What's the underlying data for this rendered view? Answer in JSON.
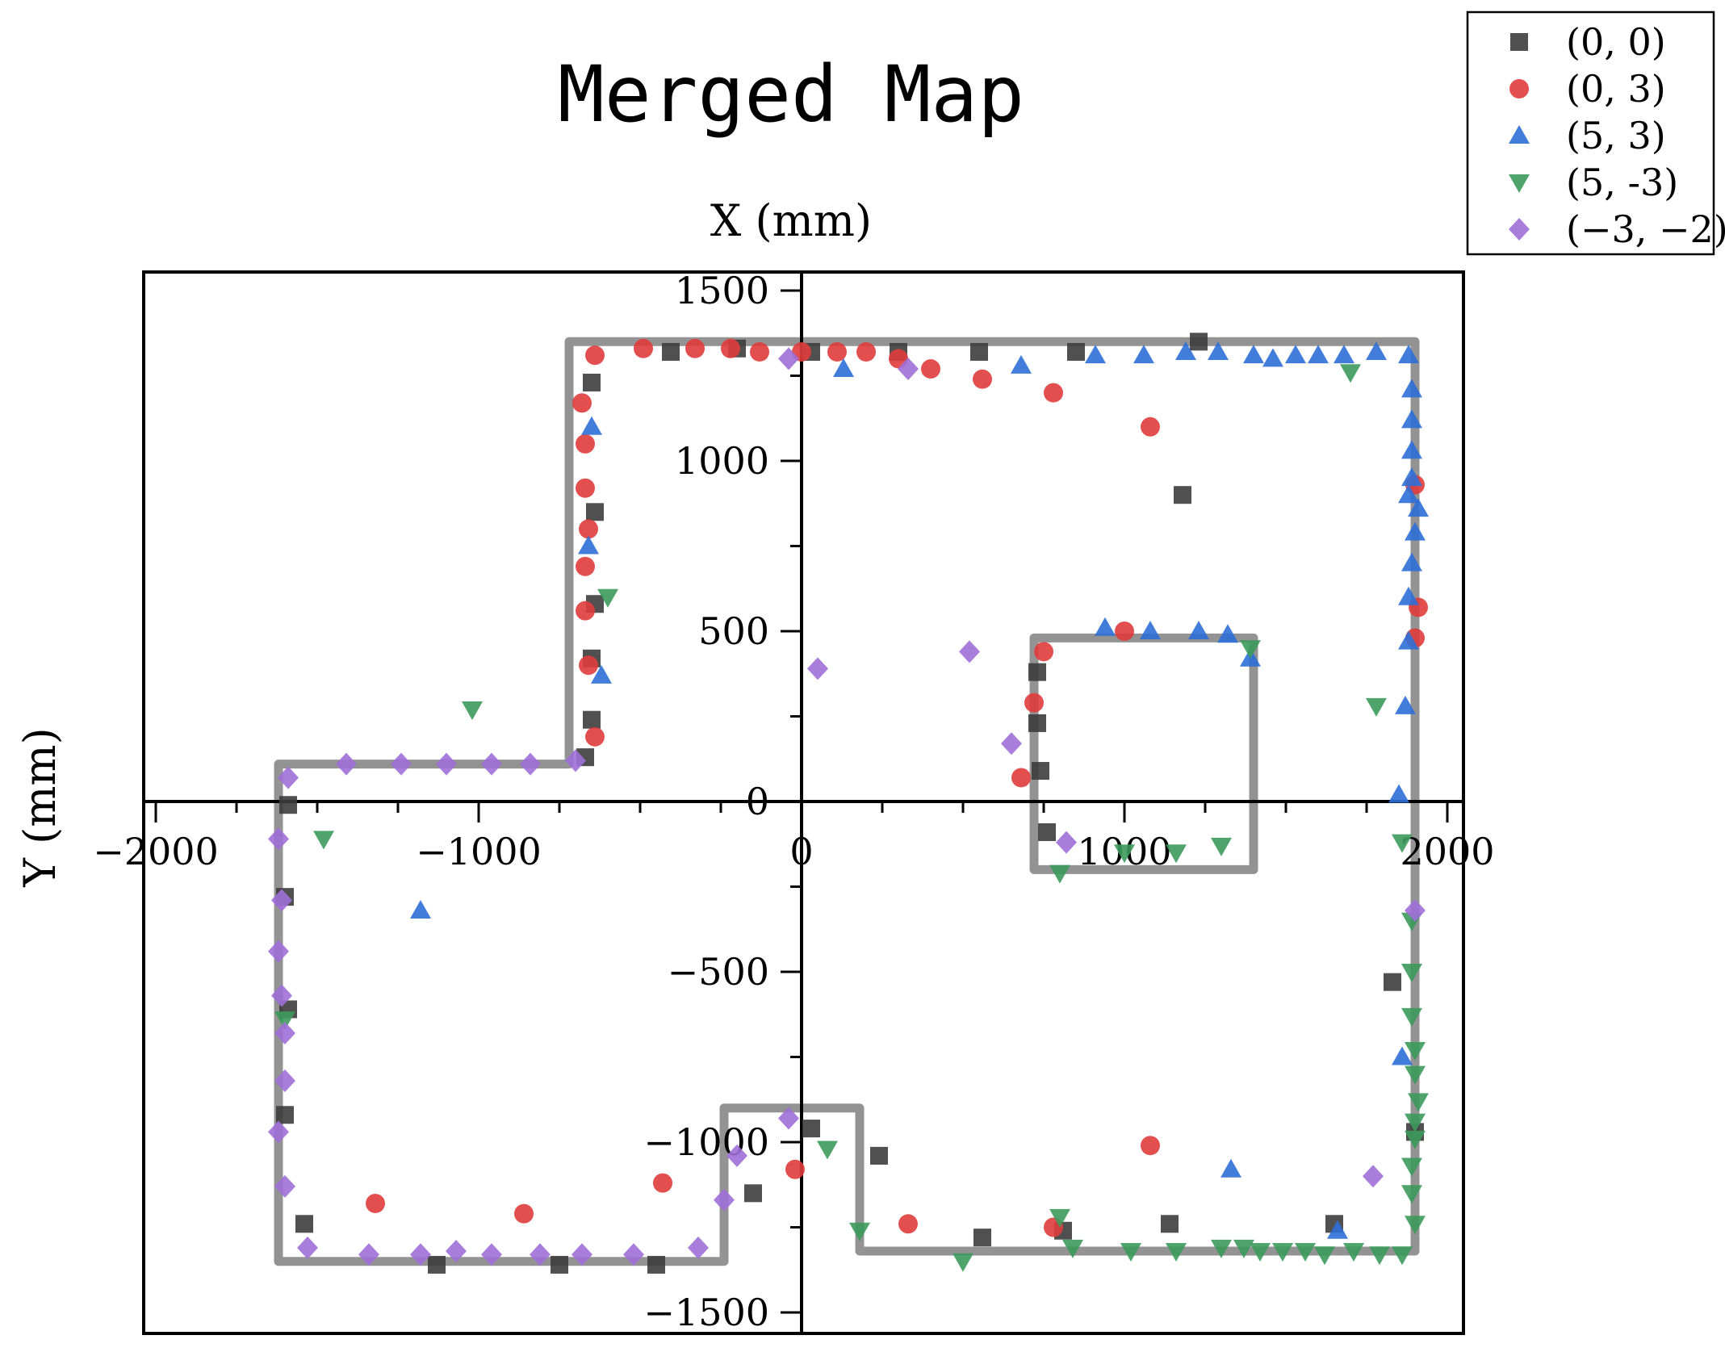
{
  "chart_data": {
    "type": "scatter",
    "title": "Merged Map",
    "xlabel": "X (mm)",
    "ylabel": "Y (mm)",
    "xlim": [
      -2000,
      2000
    ],
    "ylim": [
      -1500,
      1500
    ],
    "x_ticks": [
      -2000,
      -1000,
      0,
      1000,
      2000
    ],
    "y_ticks": [
      -1500,
      -1000,
      -500,
      0,
      500,
      1000,
      1500
    ],
    "x_tick_labels": [
      "−2000",
      "−1000",
      "0",
      "1000",
      "2000"
    ],
    "y_tick_labels": [
      "−1500",
      "−1000",
      "−500",
      "0",
      "500",
      "1000",
      "1500"
    ],
    "legend_position": "top-right-outside",
    "map_outline": {
      "color": "#808080",
      "paths": [
        [
          [
            -1620,
            110
          ],
          [
            -720,
            110
          ],
          [
            -720,
            1350
          ],
          [
            1900,
            1350
          ],
          [
            1900,
            -1320
          ],
          [
            180,
            -1320
          ],
          [
            180,
            -900
          ],
          [
            -240,
            -900
          ],
          [
            -240,
            -1350
          ],
          [
            -1620,
            -1350
          ],
          [
            -1620,
            110
          ]
        ],
        [
          [
            720,
            480
          ],
          [
            1400,
            480
          ],
          [
            1400,
            -200
          ],
          [
            720,
            -200
          ],
          [
            720,
            480
          ]
        ]
      ]
    },
    "series": [
      {
        "name": "(0, 0)",
        "marker": "square",
        "color": "#3d3d3d",
        "points": [
          [
            -1590,
            -10
          ],
          [
            -1600,
            -280
          ],
          [
            -1590,
            -610
          ],
          [
            -1600,
            -920
          ],
          [
            -1540,
            -1240
          ],
          [
            -1130,
            -1360
          ],
          [
            -750,
            -1360
          ],
          [
            -450,
            -1360
          ],
          [
            -150,
            -1150
          ],
          [
            -670,
            130
          ],
          [
            -650,
            240
          ],
          [
            -650,
            420
          ],
          [
            -640,
            580
          ],
          [
            -640,
            850
          ],
          [
            -650,
            1230
          ],
          [
            -405,
            1320
          ],
          [
            -200,
            1330
          ],
          [
            30,
            1320
          ],
          [
            300,
            1320
          ],
          [
            550,
            1320
          ],
          [
            850,
            1320
          ],
          [
            1230,
            1350
          ],
          [
            1180,
            900
          ],
          [
            730,
            380
          ],
          [
            730,
            230
          ],
          [
            740,
            90
          ],
          [
            760,
            -90
          ],
          [
            810,
            -1260
          ],
          [
            1140,
            -1240
          ],
          [
            560,
            -1280
          ],
          [
            240,
            -1040
          ],
          [
            30,
            -960
          ],
          [
            1830,
            -530
          ],
          [
            1900,
            -970
          ],
          [
            1650,
            -1240
          ]
        ]
      },
      {
        "name": "(0, 3)",
        "marker": "circle",
        "color": "#e03c3c",
        "points": [
          [
            -640,
            1310
          ],
          [
            -490,
            1330
          ],
          [
            -330,
            1330
          ],
          [
            -220,
            1330
          ],
          [
            -130,
            1320
          ],
          [
            0,
            1320
          ],
          [
            110,
            1320
          ],
          [
            200,
            1320
          ],
          [
            300,
            1300
          ],
          [
            400,
            1270
          ],
          [
            560,
            1240
          ],
          [
            780,
            1200
          ],
          [
            1080,
            1100
          ],
          [
            -680,
            1170
          ],
          [
            -670,
            1050
          ],
          [
            -670,
            920
          ],
          [
            -660,
            800
          ],
          [
            -670,
            690
          ],
          [
            -670,
            560
          ],
          [
            -660,
            400
          ],
          [
            -640,
            190
          ],
          [
            750,
            440
          ],
          [
            720,
            290
          ],
          [
            680,
            70
          ],
          [
            1000,
            500
          ],
          [
            1900,
            930
          ],
          [
            1910,
            570
          ],
          [
            1900,
            480
          ],
          [
            -1320,
            -1180
          ],
          [
            -860,
            -1210
          ],
          [
            -430,
            -1120
          ],
          [
            -20,
            -1080
          ],
          [
            330,
            -1240
          ],
          [
            780,
            -1250
          ],
          [
            1080,
            -1010
          ]
        ]
      },
      {
        "name": "(5, 3)",
        "marker": "triangle-up",
        "color": "#2e6fd8",
        "points": [
          [
            -650,
            1100
          ],
          [
            -660,
            750
          ],
          [
            -620,
            370
          ],
          [
            -1180,
            -320
          ],
          [
            130,
            1270
          ],
          [
            680,
            1280
          ],
          [
            910,
            1310
          ],
          [
            1060,
            1310
          ],
          [
            1190,
            1320
          ],
          [
            1290,
            1320
          ],
          [
            1400,
            1310
          ],
          [
            1460,
            1300
          ],
          [
            1530,
            1310
          ],
          [
            1600,
            1310
          ],
          [
            1680,
            1310
          ],
          [
            1780,
            1320
          ],
          [
            1880,
            1310
          ],
          [
            1890,
            1210
          ],
          [
            1890,
            1120
          ],
          [
            1890,
            1030
          ],
          [
            1890,
            950
          ],
          [
            1880,
            900
          ],
          [
            1910,
            860
          ],
          [
            1900,
            790
          ],
          [
            1890,
            700
          ],
          [
            1880,
            600
          ],
          [
            1880,
            470
          ],
          [
            1870,
            280
          ],
          [
            1850,
            20
          ],
          [
            940,
            510
          ],
          [
            1080,
            500
          ],
          [
            1230,
            500
          ],
          [
            1320,
            490
          ],
          [
            1390,
            420
          ],
          [
            1860,
            -750
          ],
          [
            1330,
            -1080
          ],
          [
            1660,
            -1260
          ]
        ]
      },
      {
        "name": "(5, -3)",
        "marker": "triangle-down",
        "color": "#3c9a5c",
        "points": [
          [
            -600,
            600
          ],
          [
            -1020,
            270
          ],
          [
            -1480,
            -110
          ],
          [
            -1600,
            -640
          ],
          [
            80,
            -1020
          ],
          [
            180,
            -1260
          ],
          [
            500,
            -1350
          ],
          [
            800,
            -1220
          ],
          [
            840,
            -1310
          ],
          [
            1020,
            -1320
          ],
          [
            1000,
            -150
          ],
          [
            1160,
            -150
          ],
          [
            1300,
            -130
          ],
          [
            1160,
            -1320
          ],
          [
            1300,
            -1310
          ],
          [
            1370,
            -1310
          ],
          [
            1420,
            -1320
          ],
          [
            1490,
            -1320
          ],
          [
            1560,
            -1320
          ],
          [
            1620,
            -1330
          ],
          [
            1710,
            -1320
          ],
          [
            1790,
            -1330
          ],
          [
            1860,
            -1330
          ],
          [
            1900,
            -1240
          ],
          [
            1890,
            -1150
          ],
          [
            1890,
            -1070
          ],
          [
            1900,
            -990
          ],
          [
            1900,
            -940
          ],
          [
            1910,
            -880
          ],
          [
            1900,
            -800
          ],
          [
            1900,
            -730
          ],
          [
            1890,
            -630
          ],
          [
            1890,
            -500
          ],
          [
            1890,
            -350
          ],
          [
            1860,
            -120
          ],
          [
            1780,
            280
          ],
          [
            1700,
            1260
          ],
          [
            1390,
            450
          ],
          [
            800,
            -210
          ]
        ]
      },
      {
        "name": "(−3, −2)",
        "marker": "diamond",
        "color": "#9e6fd8",
        "points": [
          [
            -1590,
            70
          ],
          [
            -1410,
            110
          ],
          [
            -1240,
            110
          ],
          [
            -1100,
            110
          ],
          [
            -960,
            110
          ],
          [
            -840,
            110
          ],
          [
            -700,
            120
          ],
          [
            -1620,
            -110
          ],
          [
            -1610,
            -290
          ],
          [
            -1620,
            -440
          ],
          [
            -1610,
            -570
          ],
          [
            -1600,
            -680
          ],
          [
            -1600,
            -820
          ],
          [
            -1620,
            -970
          ],
          [
            -1600,
            -1130
          ],
          [
            -1530,
            -1310
          ],
          [
            -1340,
            -1330
          ],
          [
            -1180,
            -1330
          ],
          [
            -1070,
            -1320
          ],
          [
            -960,
            -1330
          ],
          [
            -810,
            -1330
          ],
          [
            -680,
            -1330
          ],
          [
            -520,
            -1330
          ],
          [
            -320,
            -1310
          ],
          [
            -240,
            -1170
          ],
          [
            -200,
            -1040
          ],
          [
            -40,
            -930
          ],
          [
            50,
            390
          ],
          [
            520,
            440
          ],
          [
            330,
            1270
          ],
          [
            -40,
            1300
          ],
          [
            650,
            170
          ],
          [
            820,
            -120
          ],
          [
            1770,
            -1100
          ],
          [
            1900,
            -320
          ]
        ]
      }
    ]
  }
}
